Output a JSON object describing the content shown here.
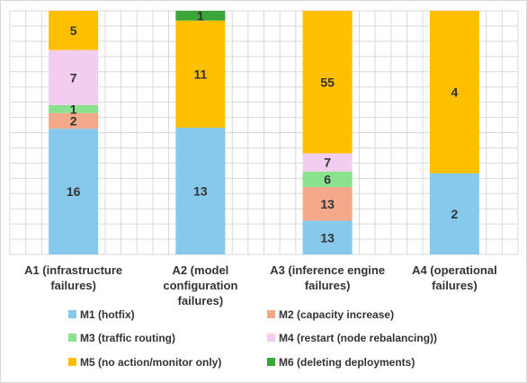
{
  "chart_data": {
    "type": "bar",
    "stacked": true,
    "normalized": true,
    "categories": [
      [
        "A1 (infrastructure",
        "failures)"
      ],
      [
        "A2 (model",
        "configuration",
        "failures)"
      ],
      [
        "A3 (inference engine",
        "failures)"
      ],
      [
        "A4 (operational",
        "failures)"
      ]
    ],
    "series": [
      {
        "name": "M1 (hotfix)",
        "color": "#86c9ec",
        "values": [
          16,
          13,
          13,
          2
        ]
      },
      {
        "name": "M2 (capacity increase)",
        "color": "#f4a98b",
        "values": [
          2,
          0,
          13,
          0
        ]
      },
      {
        "name": "M3 (traffic routing)",
        "color": "#8ae28f",
        "values": [
          1,
          0,
          6,
          0
        ]
      },
      {
        "name": "M4 (restart (node rebalancing))",
        "color": "#f3cdf0",
        "values": [
          7,
          0,
          7,
          0
        ]
      },
      {
        "name": "M5 (no action/monitor only)",
        "color": "#fdbf00",
        "values": [
          5,
          11,
          55,
          4
        ]
      },
      {
        "name": "M6 (deleting deployments)",
        "color": "#3aa63a",
        "values": [
          0,
          1,
          0,
          0
        ]
      }
    ],
    "legend_position": "bottom",
    "grid": true
  }
}
